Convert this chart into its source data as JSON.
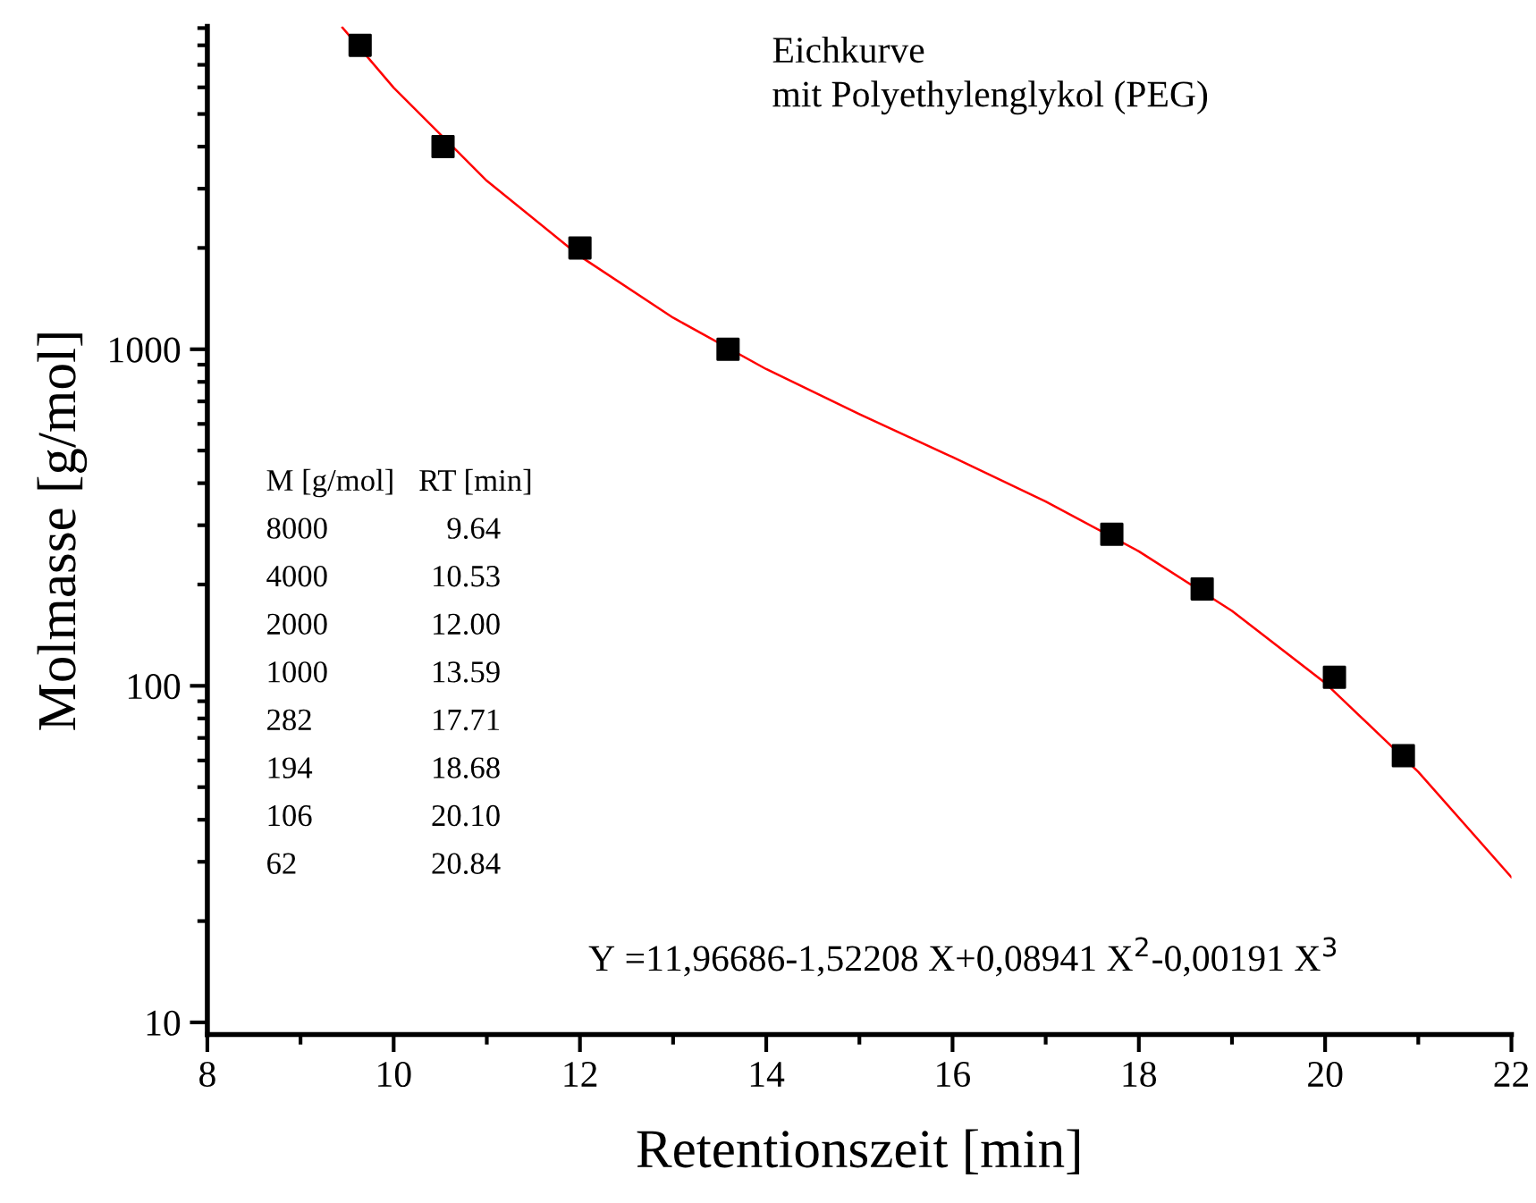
{
  "chart_data": {
    "type": "scatter",
    "title": "Eichkurve\nmit Polyethylenglykol (PEG)",
    "xlabel": "Retentionszeit [min]",
    "ylabel": "Molmasse [g/mol]",
    "log": "y",
    "xlim": [
      8,
      22
    ],
    "xticks": [
      8,
      10,
      12,
      14,
      16,
      18,
      20,
      22
    ],
    "ylim": [
      9.2,
      9100
    ],
    "yticks": [
      10,
      100,
      1000
    ],
    "grid": false,
    "series": [
      {
        "type": "line",
        "color": "#ff0000",
        "marker": "none",
        "line_style": "solid",
        "x": [
          9.45,
          10,
          11,
          12,
          13,
          14,
          15,
          16,
          17,
          18,
          19,
          20,
          21,
          22
        ],
        "values": [
          9030,
          5985,
          3166,
          1890,
          1241,
          873,
          641,
          478,
          353,
          251,
          167,
          102,
          55.5,
          27
        ]
      },
      {
        "color": "#000000",
        "marker": "square",
        "x": [
          9.64,
          10.53,
          12.0,
          13.59,
          17.71,
          18.68,
          20.1,
          20.84
        ],
        "values": [
          8000,
          4000,
          2000,
          1000,
          282,
          194,
          106,
          62
        ]
      }
    ],
    "annotations": [
      "M [g/mol]\tRT [min]",
      "8000\t9.64",
      "4000\t10.53",
      "2000\t12.00",
      "1000\t13.59",
      "282\t17.71",
      "194\t18.68",
      "106\t20.10",
      "62\t20.84",
      "Y =11,96686-1,52208 X+0,08941 X$^{2}$-0,00191 X$^{3}$"
    ]
  }
}
